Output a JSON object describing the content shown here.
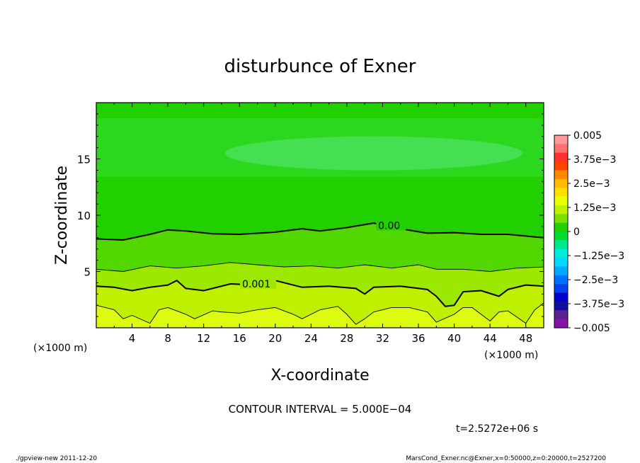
{
  "chart_data": {
    "type": "contour",
    "title": "disturbunce of Exner",
    "xlabel": "X-coordinate",
    "ylabel": "Z-coordinate",
    "x_unit_label": "(×1000 m)",
    "y_unit_label": "(×1000 m)",
    "xlim": [
      0,
      50
    ],
    "ylim": [
      0,
      20
    ],
    "x_ticks": [
      4,
      8,
      12,
      16,
      20,
      24,
      28,
      32,
      36,
      40,
      44,
      48
    ],
    "y_ticks": [
      5,
      10,
      15
    ],
    "colorbar": {
      "labels": [
        "0.005",
        "3.75e−3",
        "2.5e−3",
        "1.25e−3",
        "0",
        "−1.25e−3",
        "−2.5e−3",
        "−3.75e−3",
        "−0.005"
      ],
      "colors": [
        "#ff9a9a",
        "#ff7070",
        "#ff3030",
        "#ff4400",
        "#ff8800",
        "#ffbb00",
        "#ffe000",
        "#eaff00",
        "#bff000",
        "#7ee000",
        "#22d000",
        "#00dd30",
        "#00e890",
        "#00ecd8",
        "#00d8ff",
        "#00a8ff",
        "#0070ff",
        "#0040ee",
        "#0000cc",
        "#1010a0",
        "#5a2090",
        "#8a10a8"
      ]
    },
    "band_colors": [
      "#ddfb10",
      "#bff000",
      "#9de800",
      "#52d800",
      "#22d000",
      "#2cd81e",
      "#44e052"
    ],
    "contour_lines": [
      {
        "label": "0.00",
        "level": 0.0,
        "weight": "thick",
        "x": [
          0,
          3,
          6,
          8,
          10,
          13,
          16,
          20,
          23,
          25,
          28,
          31,
          34,
          37,
          40,
          43,
          46,
          50
        ],
        "y": [
          7.9,
          7.8,
          8.3,
          8.7,
          8.6,
          8.35,
          8.3,
          8.5,
          8.8,
          8.6,
          8.9,
          9.3,
          8.8,
          8.4,
          8.45,
          8.3,
          8.3,
          8.0
        ]
      },
      {
        "label": "",
        "level": 0.0005,
        "weight": "thin",
        "x": [
          0,
          3,
          6,
          9,
          12,
          15,
          18,
          21,
          24,
          27,
          30,
          33,
          36,
          38,
          41,
          44,
          47,
          50
        ],
        "y": [
          5.2,
          5.0,
          5.5,
          5.3,
          5.5,
          5.8,
          5.6,
          5.4,
          5.5,
          5.3,
          5.6,
          5.3,
          5.6,
          5.2,
          5.2,
          5.0,
          5.3,
          5.4
        ]
      },
      {
        "label": "0.001",
        "level": 0.001,
        "weight": "thick",
        "x": [
          0,
          2,
          4,
          6,
          8,
          9,
          10,
          12,
          15,
          18,
          20,
          23,
          26,
          29,
          30,
          31,
          34,
          37,
          38,
          39,
          40,
          41,
          43,
          45,
          46,
          48,
          50
        ],
        "y": [
          3.7,
          3.6,
          3.3,
          3.6,
          3.8,
          4.2,
          3.5,
          3.3,
          3.9,
          3.8,
          4.2,
          3.6,
          3.7,
          3.5,
          3.0,
          3.6,
          3.7,
          3.4,
          2.8,
          1.9,
          2.0,
          3.2,
          3.3,
          2.8,
          3.4,
          3.8,
          3.7
        ]
      },
      {
        "label": "",
        "level": 0.0015,
        "weight": "thin",
        "x": [
          0,
          2,
          3,
          4,
          6,
          7,
          8,
          10,
          11,
          13,
          14,
          16,
          18,
          20,
          22,
          23,
          25,
          27,
          28,
          29,
          30,
          31,
          33,
          35,
          37,
          38,
          40,
          41,
          42,
          44,
          45,
          46,
          48,
          49,
          50
        ],
        "y": [
          2.0,
          1.6,
          0.8,
          1.1,
          0.4,
          1.6,
          1.8,
          1.2,
          0.8,
          1.5,
          1.4,
          1.3,
          1.6,
          1.8,
          1.2,
          0.8,
          1.6,
          1.9,
          1.2,
          0.3,
          0.8,
          1.4,
          1.8,
          1.8,
          1.4,
          0.5,
          1.2,
          1.8,
          1.8,
          0.6,
          1.4,
          1.5,
          0.4,
          1.6,
          2.2
        ]
      }
    ]
  },
  "annotation": {
    "contour_interval": "CONTOUR INTERVAL = 5.000E−04",
    "time": "t=2.5272e+06 s"
  },
  "footer": {
    "left": "./gpview-new   2011-12-20",
    "right": "MarsCond_Exner.nc@Exner,x=0:50000,z=0:20000,t=2527200"
  }
}
